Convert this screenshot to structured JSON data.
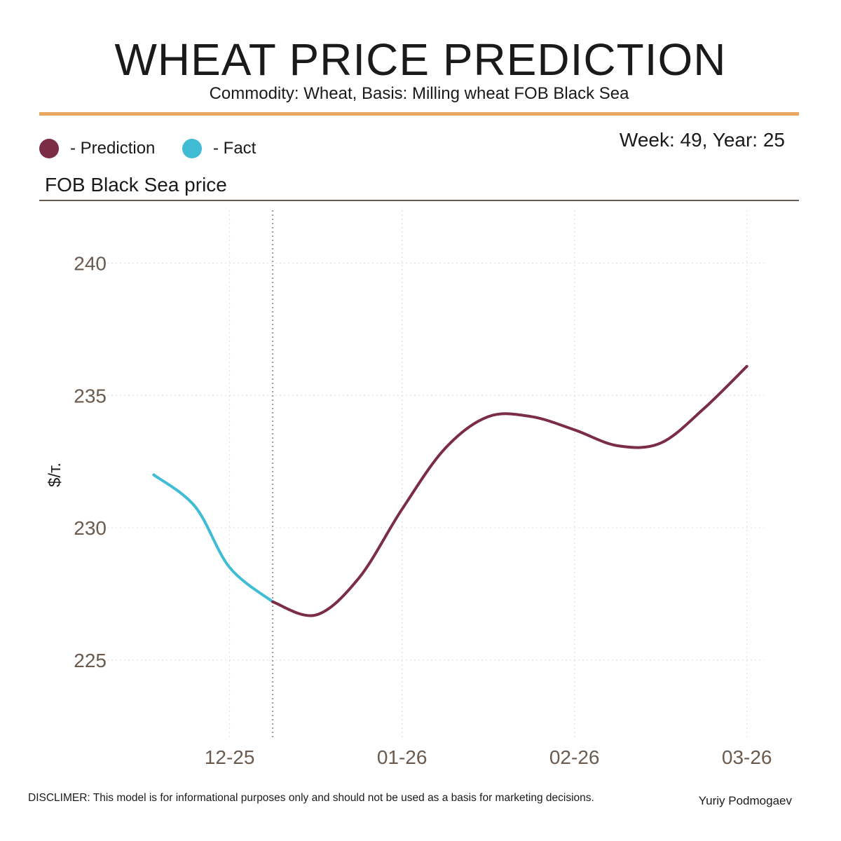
{
  "header": {
    "title": "WHEAT PRICE PREDICTION",
    "subtitle": "Commodity: Wheat, Basis: Milling wheat FOB Black Sea",
    "week_label": "Week: 49, Year: 25"
  },
  "legend": [
    {
      "label": "- Prediction",
      "color": "#7b2d45"
    },
    {
      "label": "- Fact",
      "color": "#40bcd4"
    }
  ],
  "section_title": "FOB Black Sea price",
  "footer": {
    "disclaimer": "DISCLIMER:  This model is for informational purposes only and should not be used as a basis for marketing decisions.",
    "author": "Yuriy Podmogaev"
  },
  "chart_data": {
    "type": "line",
    "ylabel": "$/т.",
    "ylim": [
      222,
      242
    ],
    "yticks": [
      225,
      230,
      235,
      240
    ],
    "xlim": [
      -0.6,
      3.05
    ],
    "xticks": [
      {
        "label": "12-25",
        "x": 0
      },
      {
        "label": "01-26",
        "x": 1
      },
      {
        "label": "02-26",
        "x": 2
      },
      {
        "label": "03-26",
        "x": 3
      }
    ],
    "forecast_start_x": 0.25,
    "grid": true,
    "series": [
      {
        "name": "Fact",
        "color": "#40bcd4",
        "x": [
          -0.44,
          -0.2,
          0.0,
          0.25
        ],
        "y": [
          232.0,
          230.8,
          228.5,
          227.2
        ]
      },
      {
        "name": "Prediction",
        "color": "#7b2d45",
        "x": [
          0.25,
          0.5,
          0.75,
          1.0,
          1.25,
          1.5,
          1.75,
          2.0,
          2.25,
          2.5,
          2.75,
          3.0
        ],
        "y": [
          227.2,
          226.7,
          228.1,
          230.7,
          233.0,
          234.2,
          234.2,
          233.7,
          233.1,
          233.2,
          234.5,
          236.1
        ]
      }
    ]
  }
}
